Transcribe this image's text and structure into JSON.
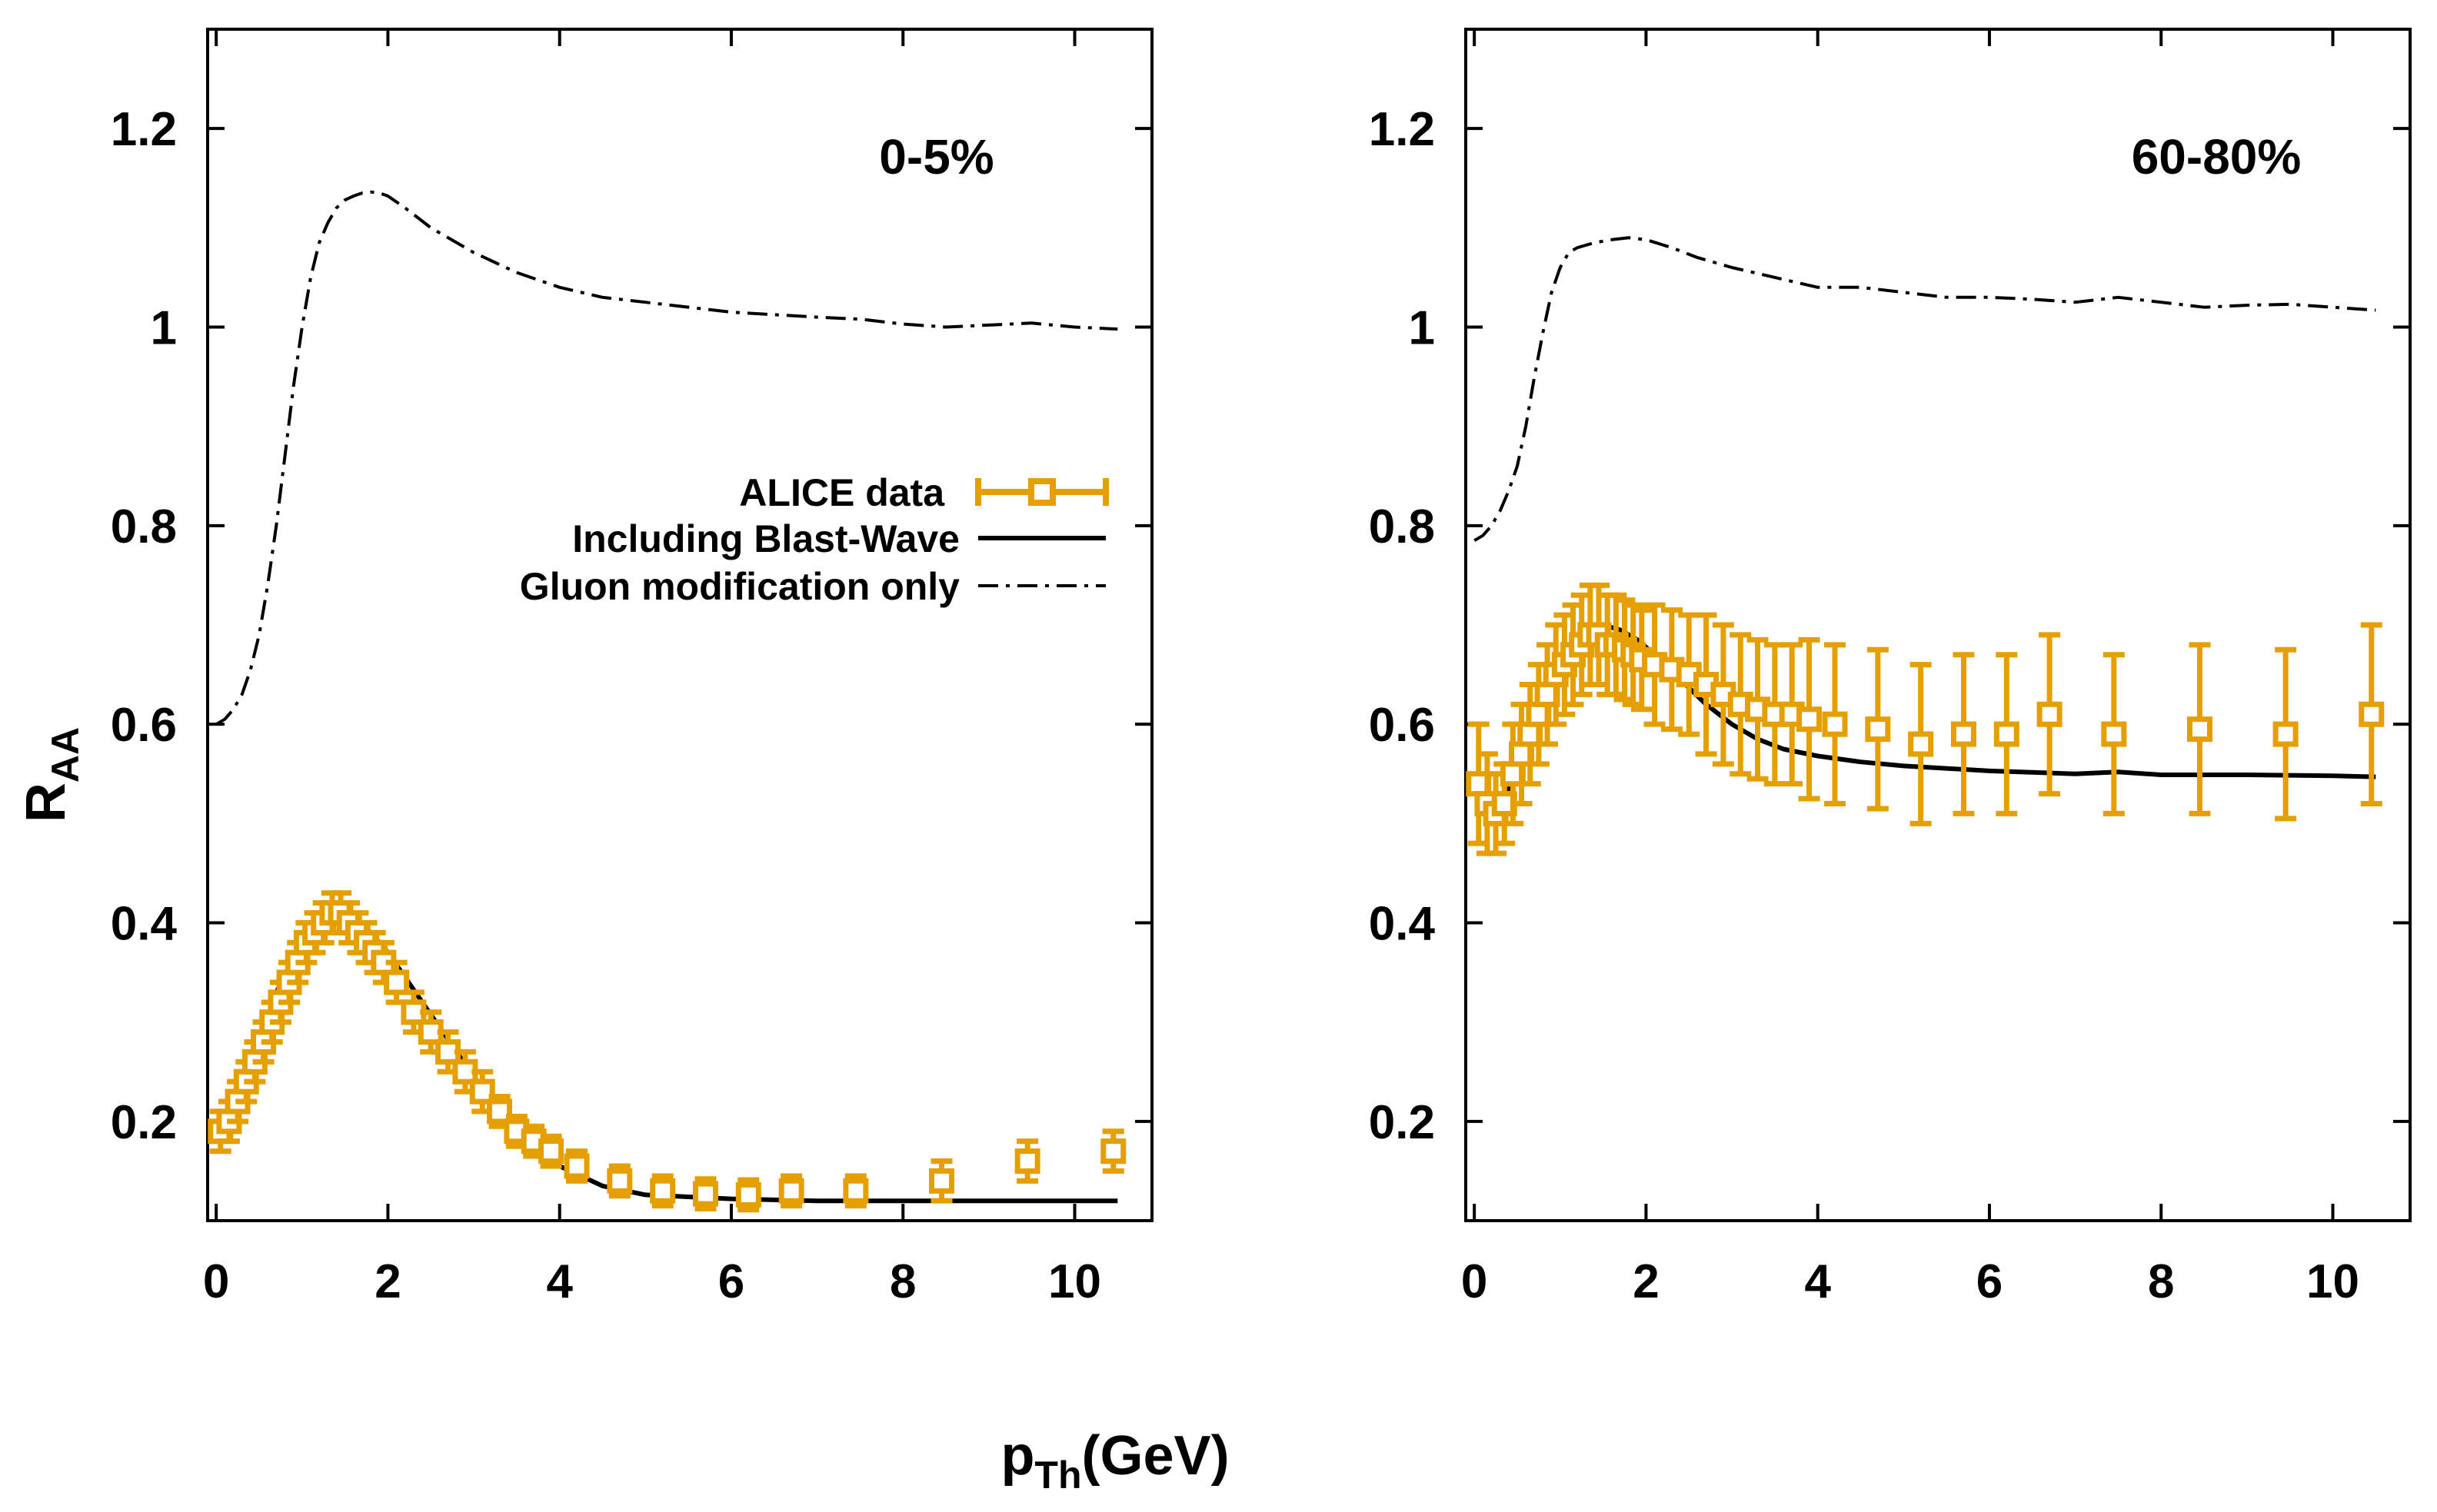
{
  "figure": {
    "ylabel_main": "R",
    "ylabel_sub": "AA",
    "xlabel_main": "p",
    "xlabel_sub": "Th",
    "xlabel_unit": "(GeV)"
  },
  "colors": {
    "data": "#e69f00",
    "model": "#000000",
    "axes": "#000000"
  },
  "legend": {
    "data_label": "ALICE data",
    "blast_label": "Including Blast-Wave",
    "gluon_label": "Gluon modification only"
  },
  "chart_data": [
    {
      "type": "scatter",
      "panel_label": "0-5%",
      "xlim": [
        -0.1,
        10.9
      ],
      "ylim": [
        0.1,
        1.3
      ],
      "xticks": [
        0,
        2,
        4,
        6,
        8,
        10
      ],
      "xtick_labels": [
        "0",
        "2",
        "4",
        "6",
        "8",
        "10"
      ],
      "yticks": [
        0.2,
        0.4,
        0.6,
        0.8,
        1.0,
        1.2
      ],
      "ytick_labels": [
        "0.2",
        "0.4",
        "0.6",
        "0.8",
        "1",
        "1.2"
      ],
      "legend_position": "center-right",
      "series": [
        {
          "name": "ALICE data",
          "style": "squares-with-errorbars",
          "x": [
            0.05,
            0.15,
            0.25,
            0.35,
            0.45,
            0.55,
            0.65,
            0.75,
            0.85,
            0.95,
            1.05,
            1.15,
            1.25,
            1.35,
            1.45,
            1.55,
            1.65,
            1.75,
            1.85,
            1.95,
            2.1,
            2.3,
            2.5,
            2.7,
            2.9,
            3.1,
            3.3,
            3.5,
            3.7,
            3.9,
            4.2,
            4.7,
            5.2,
            5.7,
            6.2,
            6.7,
            7.45,
            8.45,
            9.45,
            10.45
          ],
          "y": [
            0.19,
            0.2,
            0.22,
            0.24,
            0.26,
            0.28,
            0.3,
            0.32,
            0.34,
            0.36,
            0.38,
            0.39,
            0.4,
            0.41,
            0.41,
            0.4,
            0.39,
            0.38,
            0.37,
            0.36,
            0.34,
            0.31,
            0.29,
            0.27,
            0.25,
            0.23,
            0.21,
            0.19,
            0.18,
            0.17,
            0.155,
            0.14,
            0.13,
            0.127,
            0.126,
            0.13,
            0.13,
            0.14,
            0.16,
            0.17
          ],
          "err": [
            0.02,
            0.02,
            0.02,
            0.02,
            0.02,
            0.02,
            0.02,
            0.02,
            0.02,
            0.02,
            0.02,
            0.02,
            0.02,
            0.02,
            0.02,
            0.02,
            0.02,
            0.02,
            0.02,
            0.02,
            0.02,
            0.02,
            0.02,
            0.02,
            0.02,
            0.02,
            0.015,
            0.015,
            0.015,
            0.015,
            0.015,
            0.015,
            0.015,
            0.015,
            0.015,
            0.015,
            0.015,
            0.02,
            0.02,
            0.02
          ]
        },
        {
          "name": "Including Blast-Wave",
          "style": "solid",
          "x": [
            0.1,
            0.3,
            0.5,
            0.7,
            0.9,
            1.1,
            1.3,
            1.4,
            1.6,
            1.8,
            2.0,
            2.2,
            2.4,
            2.6,
            2.8,
            3.0,
            3.3,
            3.6,
            4.0,
            4.5,
            5.0,
            6.0,
            7.0,
            8.0,
            9.0,
            10.0,
            10.5
          ],
          "y": [
            0.18,
            0.23,
            0.28,
            0.33,
            0.365,
            0.39,
            0.405,
            0.41,
            0.405,
            0.39,
            0.37,
            0.345,
            0.32,
            0.295,
            0.27,
            0.245,
            0.21,
            0.18,
            0.155,
            0.135,
            0.126,
            0.122,
            0.12,
            0.12,
            0.12,
            0.12,
            0.12
          ]
        },
        {
          "name": "Gluon modification only",
          "style": "dash-dot",
          "x": [
            0.0,
            0.1,
            0.2,
            0.3,
            0.4,
            0.5,
            0.6,
            0.7,
            0.8,
            0.9,
            1.0,
            1.1,
            1.2,
            1.3,
            1.4,
            1.5,
            1.6,
            1.7,
            1.8,
            1.9,
            2.0,
            2.2,
            2.5,
            3.0,
            3.5,
            4.0,
            4.5,
            5.0,
            6.0,
            7.0,
            7.5,
            8.0,
            8.5,
            9.0,
            9.5,
            10.0,
            10.5
          ],
          "y": [
            0.6,
            0.605,
            0.615,
            0.63,
            0.655,
            0.69,
            0.74,
            0.8,
            0.87,
            0.94,
            1.0,
            1.05,
            1.085,
            1.105,
            1.12,
            1.128,
            1.132,
            1.135,
            1.136,
            1.135,
            1.132,
            1.12,
            1.1,
            1.075,
            1.055,
            1.04,
            1.03,
            1.025,
            1.015,
            1.01,
            1.008,
            1.003,
            1.0,
            1.002,
            1.004,
            1.0,
            0.998
          ]
        }
      ]
    },
    {
      "type": "scatter",
      "panel_label": "60-80%",
      "xlim": [
        -0.1,
        10.9
      ],
      "ylim": [
        0.1,
        1.3
      ],
      "xticks": [
        0,
        2,
        4,
        6,
        8,
        10
      ],
      "xtick_labels": [
        "0",
        "2",
        "4",
        "6",
        "8",
        "10"
      ],
      "yticks": [
        0.2,
        0.4,
        0.6,
        0.8,
        1.0,
        1.2
      ],
      "ytick_labels": [
        "0.2",
        "0.4",
        "0.6",
        "0.8",
        "1",
        "1.2"
      ],
      "series": [
        {
          "name": "ALICE data",
          "style": "squares-with-errorbars",
          "x": [
            0.05,
            0.15,
            0.25,
            0.35,
            0.45,
            0.55,
            0.65,
            0.75,
            0.85,
            0.95,
            1.05,
            1.15,
            1.25,
            1.35,
            1.45,
            1.55,
            1.65,
            1.75,
            1.85,
            1.95,
            2.1,
            2.3,
            2.5,
            2.7,
            2.9,
            3.1,
            3.3,
            3.5,
            3.7,
            3.9,
            4.2,
            4.7,
            5.2,
            5.7,
            6.2,
            6.7,
            7.45,
            8.45,
            9.45,
            10.45
          ],
          "y": [
            0.54,
            0.52,
            0.51,
            0.52,
            0.55,
            0.57,
            0.59,
            0.61,
            0.63,
            0.65,
            0.66,
            0.67,
            0.68,
            0.69,
            0.69,
            0.68,
            0.68,
            0.675,
            0.67,
            0.665,
            0.66,
            0.655,
            0.65,
            0.64,
            0.63,
            0.62,
            0.615,
            0.61,
            0.61,
            0.605,
            0.6,
            0.595,
            0.58,
            0.59,
            0.59,
            0.61,
            0.59,
            0.595,
            0.59,
            0.61
          ],
          "err": [
            0.06,
            0.05,
            0.04,
            0.04,
            0.05,
            0.05,
            0.05,
            0.05,
            0.05,
            0.05,
            0.05,
            0.05,
            0.05,
            0.05,
            0.05,
            0.05,
            0.05,
            0.05,
            0.05,
            0.05,
            0.06,
            0.06,
            0.06,
            0.07,
            0.07,
            0.07,
            0.07,
            0.07,
            0.07,
            0.08,
            0.08,
            0.08,
            0.08,
            0.08,
            0.08,
            0.08,
            0.08,
            0.085,
            0.085,
            0.09
          ]
        },
        {
          "name": "Including Blast-Wave",
          "style": "solid",
          "x": [
            0.1,
            0.3,
            0.5,
            0.7,
            0.9,
            1.1,
            1.3,
            1.5,
            1.7,
            1.9,
            2.1,
            2.4,
            2.7,
            3.0,
            3.3,
            3.6,
            4.0,
            4.5,
            5.0,
            6.0,
            7.0,
            7.5,
            8.0,
            9.0,
            10.0,
            10.5
          ],
          "y": [
            0.51,
            0.52,
            0.55,
            0.6,
            0.645,
            0.675,
            0.695,
            0.7,
            0.695,
            0.685,
            0.67,
            0.645,
            0.62,
            0.6,
            0.585,
            0.575,
            0.568,
            0.562,
            0.558,
            0.553,
            0.55,
            0.552,
            0.549,
            0.549,
            0.548,
            0.547
          ]
        },
        {
          "name": "Gluon modification only",
          "style": "dash-dot",
          "x": [
            0.0,
            0.1,
            0.2,
            0.3,
            0.4,
            0.5,
            0.6,
            0.7,
            0.8,
            0.9,
            1.0,
            1.1,
            1.2,
            1.4,
            1.6,
            1.8,
            2.0,
            2.3,
            2.6,
            3.0,
            3.5,
            4.0,
            4.5,
            5.0,
            5.5,
            6.0,
            6.5,
            7.0,
            7.5,
            8.0,
            8.5,
            9.0,
            9.5,
            10.0,
            10.5
          ],
          "y": [
            0.785,
            0.79,
            0.8,
            0.815,
            0.835,
            0.86,
            0.9,
            0.95,
            0.995,
            1.035,
            1.06,
            1.075,
            1.08,
            1.085,
            1.088,
            1.09,
            1.088,
            1.08,
            1.07,
            1.06,
            1.05,
            1.04,
            1.04,
            1.035,
            1.03,
            1.03,
            1.028,
            1.025,
            1.03,
            1.025,
            1.02,
            1.022,
            1.023,
            1.02,
            1.017
          ]
        }
      ]
    }
  ]
}
